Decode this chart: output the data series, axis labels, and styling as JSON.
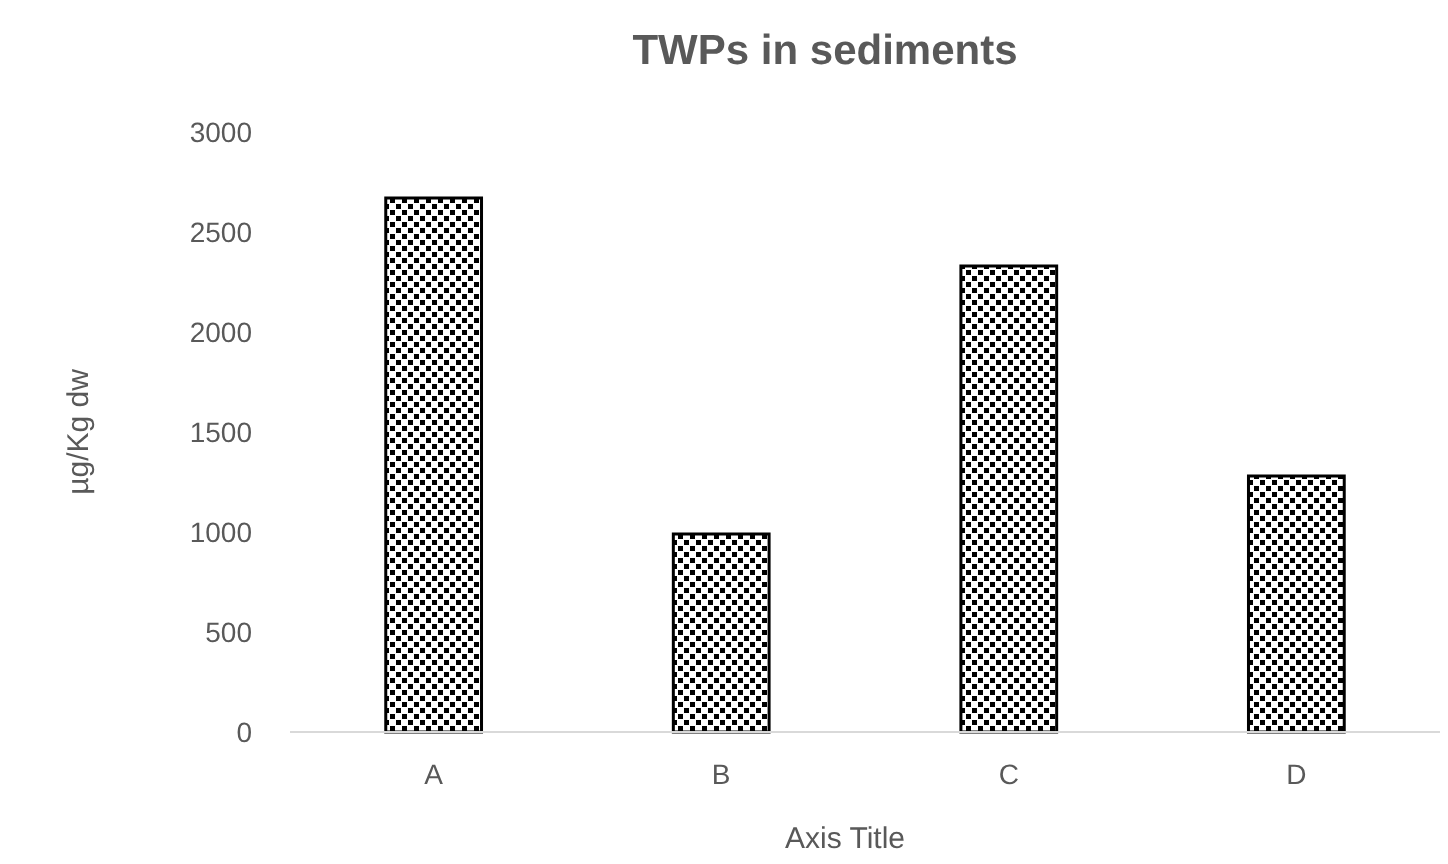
{
  "chart_data": {
    "type": "bar",
    "title": "TWPs in sediments",
    "xlabel": "Axis Title",
    "ylabel": "µg/Kg dw",
    "categories": [
      "A",
      "B",
      "C",
      "D"
    ],
    "values": [
      2670,
      990,
      2330,
      1280
    ],
    "color": "#000000",
    "ylim": [
      0,
      3000
    ],
    "yticks": [
      0,
      500,
      1000,
      1500,
      2000,
      2500,
      3000
    ],
    "grid": false
  }
}
